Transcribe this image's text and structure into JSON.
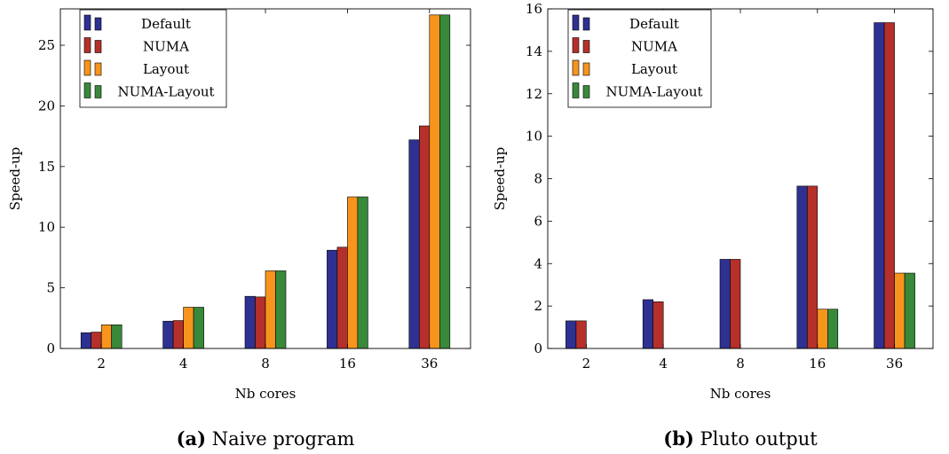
{
  "chart_data": [
    {
      "type": "bar",
      "categories": [
        "2",
        "4",
        "8",
        "16",
        "36"
      ],
      "xlabel": "Nb cores",
      "ylabel": "Speed-up",
      "ylim": [
        0,
        28
      ],
      "yticks": [
        0,
        5,
        10,
        15,
        20,
        25
      ],
      "legend_position": "top-left",
      "grid": false,
      "series": [
        {
          "name": "Default",
          "color": "#2e3192",
          "values": [
            1.3,
            2.25,
            4.3,
            8.1,
            17.2
          ]
        },
        {
          "name": "NUMA",
          "color": "#b5302a",
          "values": [
            1.35,
            2.3,
            4.25,
            8.35,
            18.35
          ]
        },
        {
          "name": "Layout",
          "color": "#f7941d",
          "values": [
            1.95,
            3.4,
            6.4,
            12.5,
            27.5
          ]
        },
        {
          "name": "NUMA-Layout",
          "color": "#39893a",
          "values": [
            1.95,
            3.4,
            6.4,
            12.5,
            27.5
          ]
        }
      ],
      "caption_label": "(a)",
      "caption_text": "Naive program"
    },
    {
      "type": "bar",
      "categories": [
        "2",
        "4",
        "8",
        "16",
        "36"
      ],
      "xlabel": "Nb cores",
      "ylabel": "Speed-up",
      "ylim": [
        0,
        16
      ],
      "yticks": [
        0,
        2,
        4,
        6,
        8,
        10,
        12,
        14,
        16
      ],
      "legend_position": "top-left",
      "grid": false,
      "series": [
        {
          "name": "Default",
          "color": "#2e3192",
          "values": [
            1.3,
            2.3,
            4.2,
            7.65,
            15.35
          ]
        },
        {
          "name": "NUMA",
          "color": "#b5302a",
          "values": [
            1.3,
            2.2,
            4.2,
            7.65,
            15.35
          ]
        },
        {
          "name": "Layout",
          "color": "#f7941d",
          "values": [
            0,
            0,
            0,
            1.85,
            3.55
          ]
        },
        {
          "name": "NUMA-Layout",
          "color": "#39893a",
          "values": [
            0,
            0,
            0,
            1.85,
            3.55
          ]
        }
      ],
      "caption_label": "(b)",
      "caption_text": "Pluto output"
    }
  ]
}
